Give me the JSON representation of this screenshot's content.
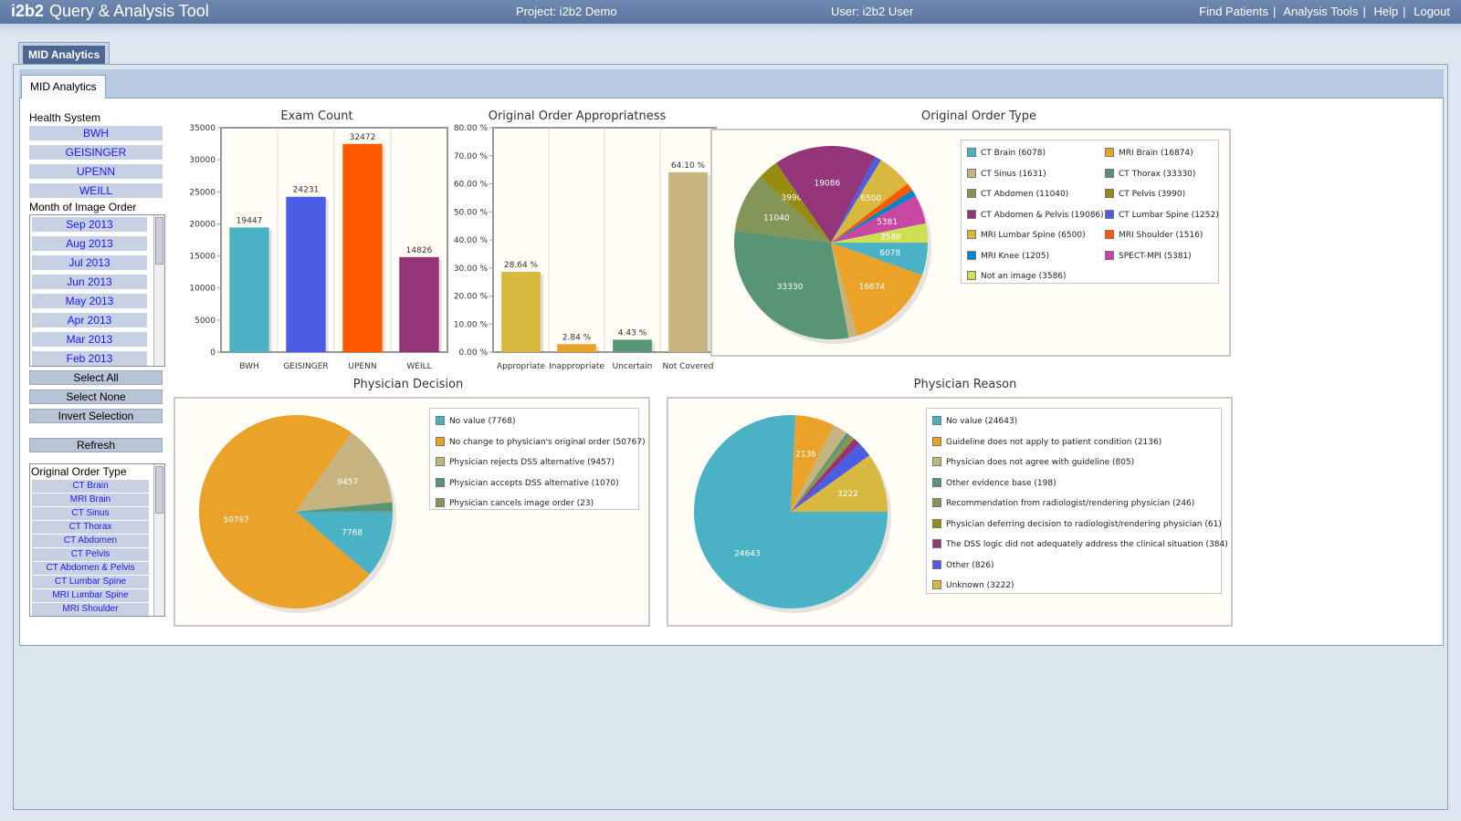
{
  "header": {
    "brand": "i2b2",
    "app_title": "Query & Analysis Tool",
    "project": "Project: i2b2 Demo",
    "user": "User: i2b2 User",
    "nav": [
      "Find Patients",
      "Analysis Tools",
      "Help",
      "Logout"
    ]
  },
  "panel": {
    "outer_tab": "MID Analytics",
    "inner_tab": "MID Analytics"
  },
  "filters": {
    "health_system_label": "Health System",
    "health_systems": [
      "BWH",
      "GEISINGER",
      "UPENN",
      "WEILL"
    ],
    "month_label": "Month of Image Order",
    "months": [
      "Sep 2013",
      "Aug 2013",
      "Jul 2013",
      "Jun 2013",
      "May 2013",
      "Apr 2013",
      "Mar 2013",
      "Feb 2013"
    ],
    "select_all": "Select All",
    "select_none": "Select None",
    "invert_selection": "Invert Selection",
    "refresh": "Refresh",
    "order_type_label": "Original Order Type",
    "order_types": [
      "CT Brain",
      "MRI Brain",
      "CT Sinus",
      "CT Thorax",
      "CT Abdomen",
      "CT Pelvis",
      "CT Abdomen & Pelvis",
      "CT Lumbar Spine",
      "MRI Lumbar Spine",
      "MRI Shoulder"
    ]
  },
  "chart_data": [
    {
      "id": "exam_count",
      "type": "bar",
      "title": "Exam Count",
      "categories": [
        "BWH",
        "GEISINGER",
        "UPENN",
        "WEILL"
      ],
      "values": [
        19447,
        24231,
        32472,
        14826
      ],
      "value_labels": [
        "19447",
        "24231",
        "32472",
        "14826"
      ],
      "colors": [
        "#4bb2c5",
        "#4b5de4",
        "#ff5800",
        "#953579"
      ],
      "ylim": [
        0,
        35000
      ],
      "yticks": [
        0,
        5000,
        10000,
        15000,
        20000,
        25000,
        30000,
        35000
      ],
      "ytick_labels": [
        "0",
        "5000",
        "10000",
        "15000",
        "20000",
        "25000",
        "30000",
        "35000"
      ],
      "grid": "vertical"
    },
    {
      "id": "appropriateness",
      "type": "bar",
      "title": "Original Order Appropriatness",
      "categories": [
        "Appropriate",
        "Inappropriate",
        "Uncertain",
        "Not Covered"
      ],
      "values": [
        28.64,
        2.84,
        4.43,
        64.1
      ],
      "value_labels": [
        "28.64 %",
        "2.84 %",
        "4.43 %",
        "64.10 %"
      ],
      "colors": [
        "#d8b83f",
        "#eaa228",
        "#579575",
        "#c5b47f"
      ],
      "ylim": [
        0,
        80
      ],
      "yticks": [
        0,
        10,
        20,
        30,
        40,
        50,
        60,
        70,
        80
      ],
      "ytick_labels": [
        "0.00 %",
        "10.00 %",
        "20.00 %",
        "30.00 %",
        "40.00 %",
        "50.00 %",
        "60.00 %",
        "70.00 %",
        "80.00 %"
      ],
      "grid": "vertical"
    },
    {
      "id": "order_type",
      "type": "pie",
      "title": "Original Order Type",
      "labels": [
        "CT Brain (6078)",
        "MRI Brain (16874)",
        "CT Sinus (1631)",
        "CT Thorax (33330)",
        "CT Abdomen (11040)",
        "CT Pelvis (3990)",
        "CT Abdomen & Pelvis (19086)",
        "CT Lumbar Spine (1252)",
        "MRI Lumbar Spine (6500)",
        "MRI Shoulder (1516)",
        "MRI Knee (1205)",
        "SPECT-MPI (5381)",
        "Not an image (3586)"
      ],
      "values": [
        6078,
        16874,
        1631,
        33330,
        11040,
        3990,
        19086,
        1252,
        6500,
        1516,
        1205,
        5381,
        3586
      ],
      "slice_labels": [
        "6078",
        "16874",
        "",
        "33330",
        "11040",
        "3990",
        "19086",
        "",
        "6500",
        "",
        "",
        "5381",
        "3586"
      ],
      "colors": [
        "#4bb2c5",
        "#eaa228",
        "#c5b47f",
        "#579575",
        "#839557",
        "#958c12",
        "#953579",
        "#4b5de4",
        "#d8b83f",
        "#ff5800",
        "#0085cc",
        "#c747a3",
        "#cddf54"
      ],
      "legend_columns": 2
    },
    {
      "id": "physician_decision",
      "type": "pie",
      "title": "Physician Decision",
      "labels": [
        "No value (7768)",
        "No change to physician's original order (50767)",
        "Physician rejects DSS alternative (9457)",
        "Physician accepts DSS alternative (1070)",
        "Physician cancels image order (23)"
      ],
      "values": [
        7768,
        50767,
        9457,
        1070,
        23
      ],
      "slice_labels": [
        "7768",
        "50767",
        "9457",
        "",
        ""
      ],
      "colors": [
        "#4bb2c5",
        "#eaa228",
        "#c5b47f",
        "#579575",
        "#839557"
      ],
      "legend_columns": 1
    },
    {
      "id": "physician_reason",
      "type": "pie",
      "title": "Physician Reason",
      "labels": [
        "No value (24643)",
        "Guideline does not apply to patient condition (2136)",
        "Physician does not agree with guideline (805)",
        "Other evidence base (198)",
        "Recommendation from radiologist/rendering physician (246)",
        "Physician deferring decision to radiologist/rendering physician (61)",
        "The DSS logic did not adequately address the clinical situation (384)",
        "Other (826)",
        "Unknown (3222)"
      ],
      "values": [
        24643,
        2136,
        805,
        198,
        246,
        61,
        384,
        826,
        3222
      ],
      "slice_labels": [
        "24643",
        "2136",
        "",
        "",
        "",
        "",
        "",
        "",
        "3222"
      ],
      "colors": [
        "#4bb2c5",
        "#eaa228",
        "#c5b47f",
        "#579575",
        "#839557",
        "#958c12",
        "#953579",
        "#4b5de4",
        "#d8b83f"
      ],
      "legend_columns": 1
    }
  ]
}
